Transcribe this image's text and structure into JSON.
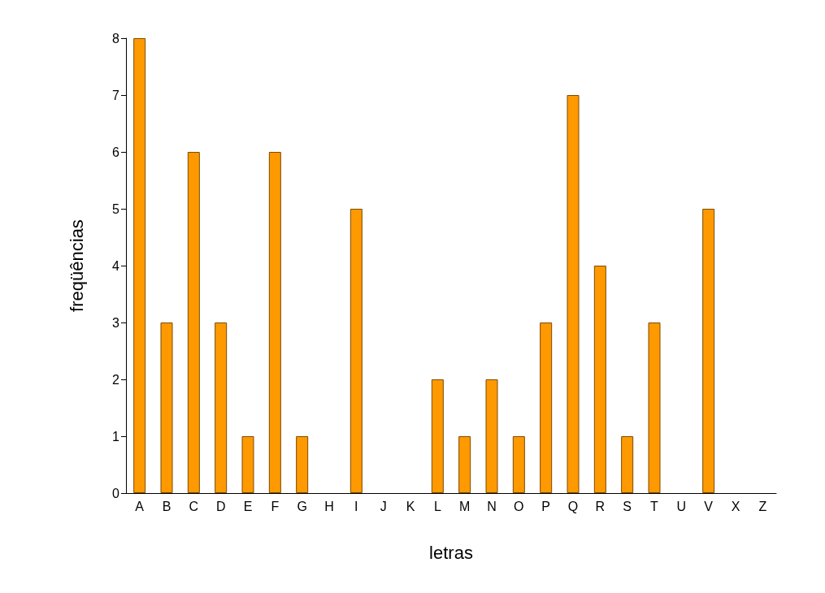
{
  "chart_data": {
    "type": "bar",
    "xlabel": "letras",
    "ylabel": "freqüências",
    "categories": [
      "A",
      "B",
      "C",
      "D",
      "E",
      "F",
      "G",
      "H",
      "I",
      "J",
      "K",
      "L",
      "M",
      "N",
      "O",
      "P",
      "Q",
      "R",
      "S",
      "T",
      "U",
      "V",
      "X",
      "Z"
    ],
    "values": [
      8,
      3,
      6,
      3,
      1,
      6,
      1,
      0,
      5,
      0,
      0,
      2,
      1,
      2,
      1,
      3,
      7,
      4,
      1,
      3,
      0,
      5,
      0,
      0
    ],
    "color": "#ff9900",
    "ylim": [
      0,
      8
    ],
    "yticks": [
      0,
      1,
      2,
      3,
      4,
      5,
      6,
      7,
      8
    ]
  }
}
